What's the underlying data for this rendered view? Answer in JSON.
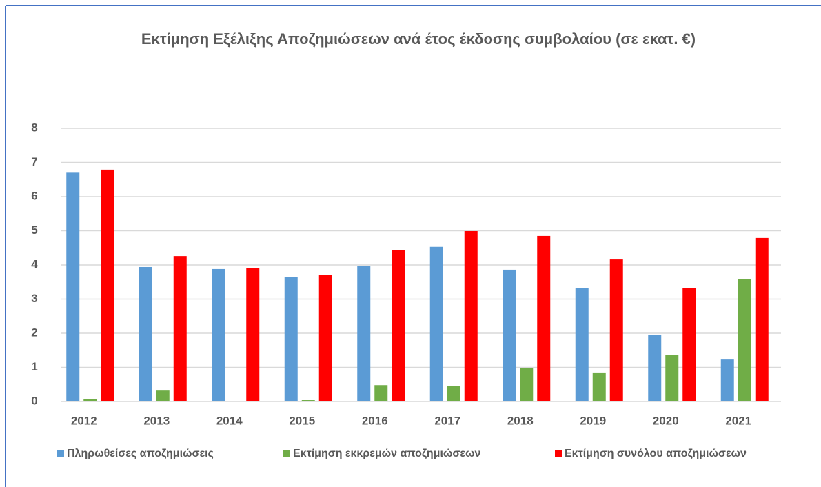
{
  "chart_data": {
    "type": "bar",
    "title": "Εκτίμηση Εξέλιξης  Αποζημιώσεων ανά έτος έκδοσης συμβολαίου (σε εκατ. €)",
    "categories": [
      "2012",
      "2013",
      "2014",
      "2015",
      "2016",
      "2017",
      "2018",
      "2019",
      "2020",
      "2021"
    ],
    "series": [
      {
        "name": "Πληρωθείσες αποζημιώσεις",
        "color": "#5b9bd5",
        "values": [
          6.7,
          3.94,
          3.88,
          3.64,
          3.96,
          4.53,
          3.86,
          3.33,
          1.96,
          1.23
        ]
      },
      {
        "name": "Εκτίμηση εκκρεμών αποζημιώσεων",
        "color": "#70ad47",
        "values": [
          0.08,
          0.32,
          0,
          0.04,
          0.48,
          0.46,
          0.99,
          0.83,
          1.37,
          3.58
        ]
      },
      {
        "name": "Εκτίμηση συνόλου αποζημιώσεων",
        "color": "#ff0000",
        "values": [
          6.79,
          4.26,
          3.9,
          3.7,
          4.44,
          4.99,
          4.85,
          4.16,
          3.33,
          4.79
        ]
      }
    ],
    "ylim": [
      0,
      8
    ],
    "yticks": [
      0,
      1,
      2,
      3,
      4,
      5,
      6,
      7,
      8
    ],
    "grid": true,
    "legend": "bottom"
  }
}
